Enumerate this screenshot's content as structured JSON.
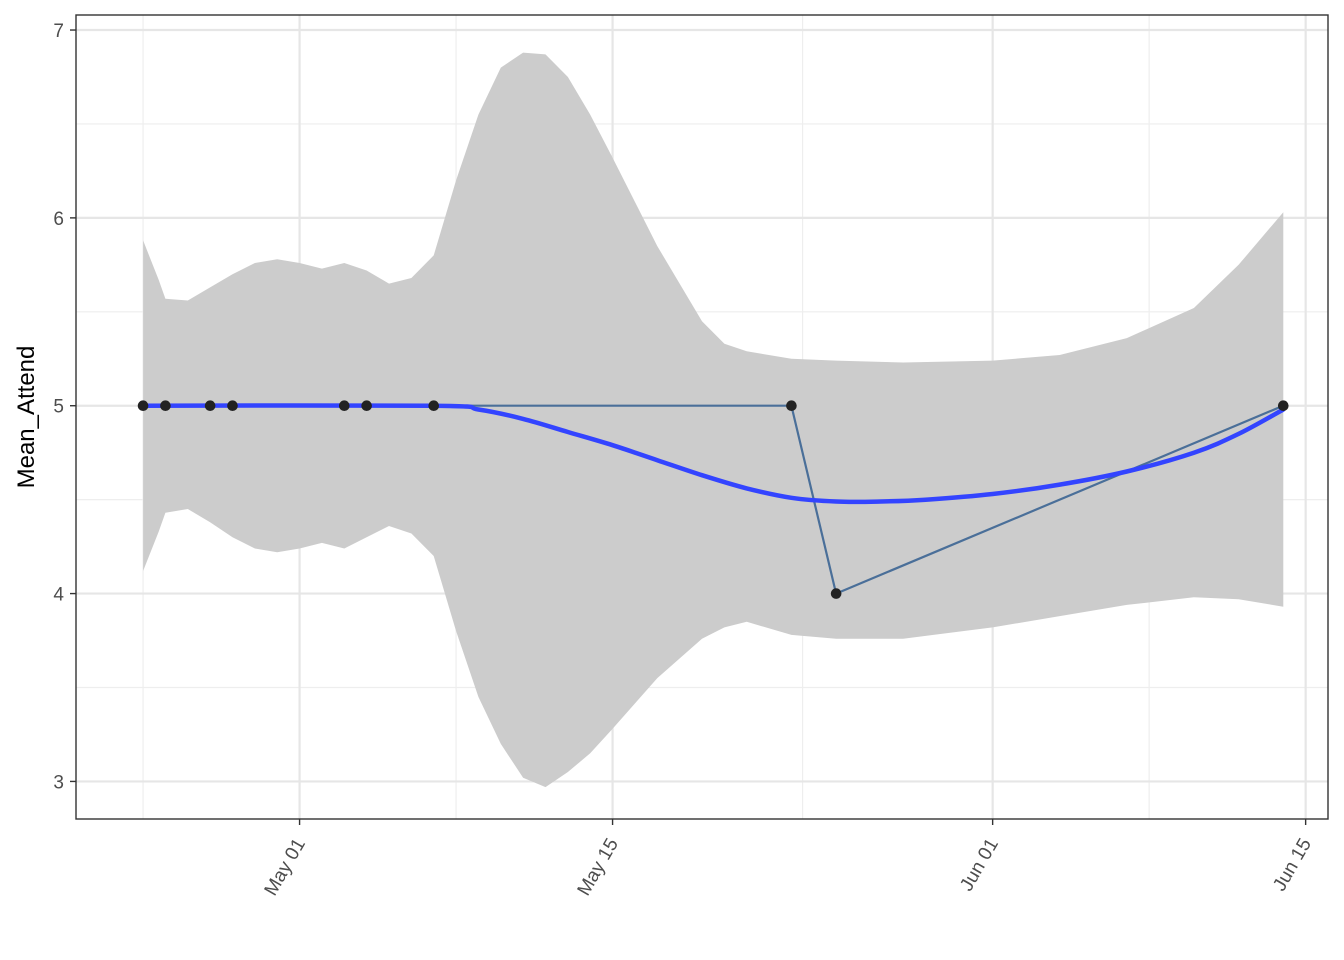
{
  "chart_data": {
    "type": "line",
    "title": "",
    "xlabel": "",
    "ylabel": "Mean_Attend",
    "x_axis": {
      "type": "date",
      "ticks": [
        {
          "date": "2020-05-01",
          "label": "May 01"
        },
        {
          "date": "2020-05-15",
          "label": "May 15"
        },
        {
          "date": "2020-06-01",
          "label": "Jun 01"
        },
        {
          "date": "2020-06-15",
          "label": "Jun 15"
        }
      ],
      "range": [
        "2020-04-21",
        "2020-06-16"
      ]
    },
    "ylim": [
      2.8,
      7.08
    ],
    "y_ticks": [
      3,
      4,
      5,
      6,
      7
    ],
    "grid": true,
    "series": [
      {
        "kind": "line+points",
        "color": "#4a6f99",
        "points": [
          {
            "x": "2020-04-24",
            "y": 5
          },
          {
            "x": "2020-04-25",
            "y": 5
          },
          {
            "x": "2020-04-27",
            "y": 5
          },
          {
            "x": "2020-04-28",
            "y": 5
          },
          {
            "x": "2020-05-03",
            "y": 5
          },
          {
            "x": "2020-05-04",
            "y": 5
          },
          {
            "x": "2020-05-07",
            "y": 5
          },
          {
            "x": "2020-05-23",
            "y": 5
          },
          {
            "x": "2020-05-25",
            "y": 4
          },
          {
            "x": "2020-06-14",
            "y": 5
          }
        ]
      },
      {
        "kind": "smooth",
        "color": "#3344ff",
        "points": [
          {
            "x": "2020-04-24",
            "y": 5.0
          },
          {
            "x": "2020-05-07",
            "y": 5.0
          },
          {
            "x": "2020-05-09",
            "y": 4.98
          },
          {
            "x": "2020-05-11",
            "y": 4.93
          },
          {
            "x": "2020-05-13",
            "y": 4.86
          },
          {
            "x": "2020-05-15",
            "y": 4.79
          },
          {
            "x": "2020-05-17",
            "y": 4.71
          },
          {
            "x": "2020-05-19",
            "y": 4.63
          },
          {
            "x": "2020-05-21",
            "y": 4.56
          },
          {
            "x": "2020-05-23",
            "y": 4.51
          },
          {
            "x": "2020-05-25",
            "y": 4.49
          },
          {
            "x": "2020-05-27",
            "y": 4.49
          },
          {
            "x": "2020-05-29",
            "y": 4.5
          },
          {
            "x": "2020-06-01",
            "y": 4.53
          },
          {
            "x": "2020-06-04",
            "y": 4.58
          },
          {
            "x": "2020-06-07",
            "y": 4.65
          },
          {
            "x": "2020-06-10",
            "y": 4.75
          },
          {
            "x": "2020-06-12",
            "y": 4.85
          },
          {
            "x": "2020-06-14",
            "y": 4.98
          }
        ]
      },
      {
        "kind": "confidence-band",
        "color": "#cccccc",
        "points": [
          {
            "x": "2020-04-24",
            "lower": 4.12,
            "upper": 5.88
          },
          {
            "x": "2020-04-24.7",
            "lower": 4.33,
            "upper": 5.67
          },
          {
            "x": "2020-04-25",
            "lower": 4.43,
            "upper": 5.57
          },
          {
            "x": "2020-04-26",
            "lower": 4.45,
            "upper": 5.56
          },
          {
            "x": "2020-04-27",
            "lower": 4.38,
            "upper": 5.63
          },
          {
            "x": "2020-04-28",
            "lower": 4.3,
            "upper": 5.7
          },
          {
            "x": "2020-04-29",
            "lower": 4.24,
            "upper": 5.76
          },
          {
            "x": "2020-04-30",
            "lower": 4.22,
            "upper": 5.78
          },
          {
            "x": "2020-05-01",
            "lower": 4.24,
            "upper": 5.76
          },
          {
            "x": "2020-05-02",
            "lower": 4.27,
            "upper": 5.73
          },
          {
            "x": "2020-05-03",
            "lower": 4.24,
            "upper": 5.76
          },
          {
            "x": "2020-05-04",
            "lower": 4.3,
            "upper": 5.72
          },
          {
            "x": "2020-05-05",
            "lower": 4.36,
            "upper": 5.65
          },
          {
            "x": "2020-05-06",
            "lower": 4.32,
            "upper": 5.68
          },
          {
            "x": "2020-05-07",
            "lower": 4.2,
            "upper": 5.8
          },
          {
            "x": "2020-05-08",
            "lower": 3.8,
            "upper": 6.2
          },
          {
            "x": "2020-05-09",
            "lower": 3.45,
            "upper": 6.55
          },
          {
            "x": "2020-05-10",
            "lower": 3.2,
            "upper": 6.8
          },
          {
            "x": "2020-05-11",
            "lower": 3.02,
            "upper": 6.88
          },
          {
            "x": "2020-05-12",
            "lower": 2.97,
            "upper": 6.87
          },
          {
            "x": "2020-05-13",
            "lower": 3.05,
            "upper": 6.75
          },
          {
            "x": "2020-05-14",
            "lower": 3.15,
            "upper": 6.55
          },
          {
            "x": "2020-05-15",
            "lower": 3.28,
            "upper": 6.32
          },
          {
            "x": "2020-05-17",
            "lower": 3.55,
            "upper": 5.85
          },
          {
            "x": "2020-05-19",
            "lower": 3.76,
            "upper": 5.45
          },
          {
            "x": "2020-05-20",
            "lower": 3.82,
            "upper": 5.33
          },
          {
            "x": "2020-05-21",
            "lower": 3.85,
            "upper": 5.29
          },
          {
            "x": "2020-05-23",
            "lower": 3.78,
            "upper": 5.25
          },
          {
            "x": "2020-05-25",
            "lower": 3.76,
            "upper": 5.24
          },
          {
            "x": "2020-05-28",
            "lower": 3.76,
            "upper": 5.23
          },
          {
            "x": "2020-06-01",
            "lower": 3.82,
            "upper": 5.24
          },
          {
            "x": "2020-06-04",
            "lower": 3.88,
            "upper": 5.27
          },
          {
            "x": "2020-06-07",
            "lower": 3.94,
            "upper": 5.36
          },
          {
            "x": "2020-06-10",
            "lower": 3.98,
            "upper": 5.52
          },
          {
            "x": "2020-06-12",
            "lower": 3.97,
            "upper": 5.75
          },
          {
            "x": "2020-06-14",
            "lower": 3.93,
            "upper": 6.03
          }
        ]
      }
    ]
  }
}
